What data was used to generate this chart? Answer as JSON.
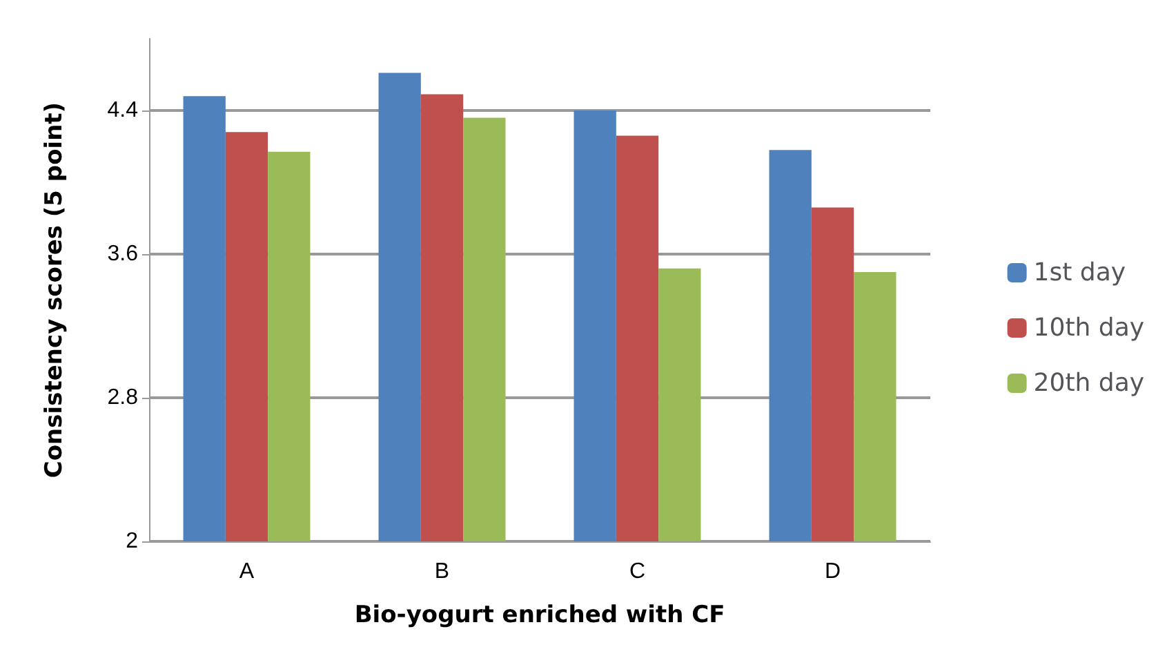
{
  "chart_data": {
    "type": "bar",
    "xlabel": "Bio-yogurt enriched with CF",
    "ylabel": "Consistency scores (5 point)",
    "categories": [
      "A",
      "B",
      "C",
      "D"
    ],
    "series": [
      {
        "name": "1st day",
        "color": "#4f81bd",
        "values": [
          4.48,
          4.61,
          4.4,
          4.18
        ]
      },
      {
        "name": "10th day",
        "color": "#c0504d",
        "values": [
          4.28,
          4.49,
          4.26,
          3.86
        ]
      },
      {
        "name": "20th day",
        "color": "#9bbb59",
        "values": [
          4.17,
          4.36,
          3.52,
          3.5
        ]
      }
    ],
    "ylim": [
      2,
      4.8
    ],
    "yticks": [
      2,
      2.8,
      3.6,
      4.4
    ],
    "grid": "y",
    "legend": "right"
  }
}
